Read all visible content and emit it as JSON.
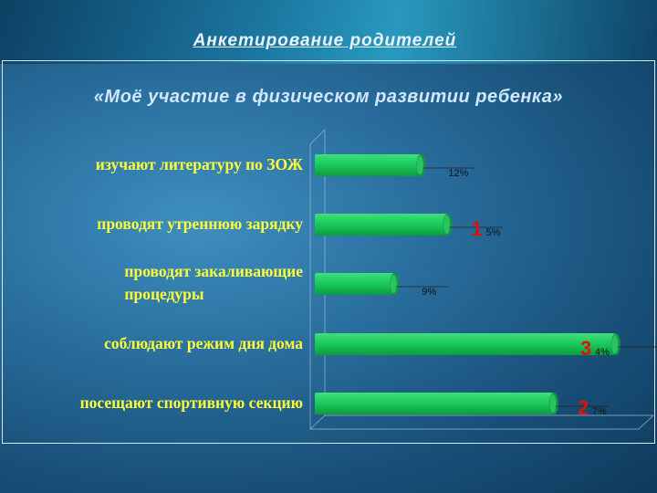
{
  "header": {
    "title": "Анкетирование родителей "
  },
  "chart_data": {
    "type": "bar",
    "orientation": "horizontal",
    "title": "«Моё участие в физическом развитии ребенка»",
    "categories": [
      "изучают литературу по ЗОЖ",
      "проводят утреннюю зарядку",
      "проводят закаливающие процедуры",
      "соблюдают режим дня дома",
      "посещают спортивную секцию"
    ],
    "category_lines": [
      [
        "изучают литературу по ЗОЖ"
      ],
      [
        "проводят утреннюю зарядку"
      ],
      [
        "проводят закаливающие",
        "процедуры"
      ],
      [
        "соблюдают режим дня дома"
      ],
      [
        "посещают спортивную секцию"
      ]
    ],
    "values": [
      12,
      15,
      9,
      34,
      27
    ],
    "value_labels": [
      "12%",
      "15%",
      "9%",
      "34%",
      "27%"
    ],
    "rank_markers": [
      "",
      "1",
      "",
      "3",
      "2"
    ],
    "xlim": [
      0,
      40
    ],
    "grid": false,
    "colors": {
      "bar": "#19c85a",
      "bar_light": "#3fe07a",
      "bar_dark": "#0e9a3f",
      "rank": "#e01010",
      "label": "#ffff3a"
    }
  }
}
